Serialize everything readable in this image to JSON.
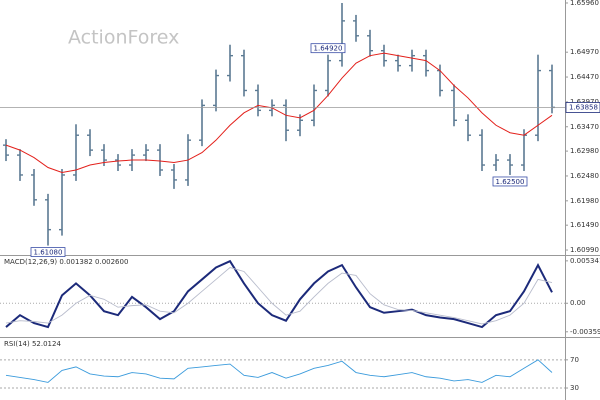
{
  "chart_data": [
    {
      "type": "ohlc",
      "watermark": "ActionForex",
      "color": "#5b7a93",
      "grid": false,
      "open": [
        1.631,
        1.629,
        1.625,
        1.62,
        1.614,
        1.625,
        1.633,
        1.63,
        1.628,
        1.627,
        1.629,
        1.63,
        1.626,
        1.624,
        1.632,
        1.639,
        1.645,
        1.649,
        1.642,
        1.638,
        1.639,
        1.634,
        1.636,
        1.642,
        1.648,
        1.656,
        1.653,
        1.65,
        1.648,
        1.647,
        1.649,
        1.646,
        1.642,
        1.636,
        1.633,
        1.627,
        1.628,
        1.627,
        1.633,
        1.646
      ],
      "high": [
        1.6322,
        1.6302,
        1.6262,
        1.6212,
        1.6262,
        1.6352,
        1.6342,
        1.6312,
        1.6292,
        1.6302,
        1.6312,
        1.6312,
        1.6272,
        1.6332,
        1.6402,
        1.6462,
        1.6512,
        1.6502,
        1.6432,
        1.6402,
        1.6402,
        1.6372,
        1.6432,
        1.6492,
        1.6596,
        1.6572,
        1.6542,
        1.6512,
        1.6492,
        1.6502,
        1.6502,
        1.6472,
        1.6432,
        1.6372,
        1.6342,
        1.6292,
        1.6292,
        1.6342,
        1.6492,
        1.6472
      ],
      "low": [
        1.6278,
        1.6238,
        1.6188,
        1.6108,
        1.6128,
        1.6238,
        1.6288,
        1.6268,
        1.6258,
        1.6258,
        1.6278,
        1.6248,
        1.6222,
        1.6228,
        1.6308,
        1.6378,
        1.6438,
        1.6408,
        1.6368,
        1.6368,
        1.6318,
        1.6328,
        1.6348,
        1.6408,
        1.6468,
        1.6518,
        1.6488,
        1.6468,
        1.6458,
        1.6458,
        1.6448,
        1.6408,
        1.6348,
        1.6318,
        1.6258,
        1.6258,
        1.625,
        1.6258,
        1.6318,
        1.6374
      ],
      "close": [
        1.629,
        1.625,
        1.62,
        1.614,
        1.625,
        1.633,
        1.63,
        1.628,
        1.627,
        1.629,
        1.63,
        1.626,
        1.624,
        1.632,
        1.639,
        1.645,
        1.649,
        1.642,
        1.638,
        1.639,
        1.634,
        1.636,
        1.642,
        1.648,
        1.656,
        1.653,
        1.65,
        1.648,
        1.647,
        1.649,
        1.646,
        1.642,
        1.636,
        1.633,
        1.627,
        1.628,
        1.627,
        1.633,
        1.646,
        1.6386
      ],
      "series": [
        {
          "color": "#e3201b",
          "values": [
            1.631,
            1.63,
            1.6285,
            1.6265,
            1.6255,
            1.626,
            1.627,
            1.6275,
            1.6278,
            1.628,
            1.628,
            1.6278,
            1.6275,
            1.628,
            1.6295,
            1.632,
            1.635,
            1.6375,
            1.639,
            1.6385,
            1.637,
            1.6365,
            1.638,
            1.641,
            1.6445,
            1.6475,
            1.649,
            1.6495,
            1.649,
            1.6485,
            1.648,
            1.646,
            1.643,
            1.6405,
            1.6375,
            1.635,
            1.6335,
            1.633,
            1.635,
            1.637
          ]
        }
      ],
      "ylim": [
        1.6089,
        1.6602
      ],
      "yticks": [
        {
          "value": 1.6596,
          "label": "1.65960"
        },
        {
          "value": 1.6497,
          "label": "1.64970"
        },
        {
          "value": 1.6447,
          "label": "1.64470"
        },
        {
          "value": 1.6397,
          "label": "1.63970"
        },
        {
          "value": 1.6347,
          "label": "1.63470"
        },
        {
          "value": 1.6298,
          "label": "1.62980"
        },
        {
          "value": 1.6248,
          "label": "1.62480"
        },
        {
          "value": 1.6198,
          "label": "1.61980"
        },
        {
          "value": 1.6149,
          "label": "1.61490"
        },
        {
          "value": 1.6099,
          "label": "1.60990"
        }
      ],
      "annotations": [
        {
          "value": 1.6108,
          "label": "1.61080"
        },
        {
          "value": 1.625,
          "label": "1.62500"
        },
        {
          "value": 1.6492,
          "label": "1.64920"
        }
      ],
      "last": {
        "value": 1.63858,
        "label": "1.63858"
      }
    },
    {
      "type": "line",
      "title": "MACD(12,26,9) 0.001382 0.002600",
      "series": [
        {
          "color": "#1c2a7a",
          "values": [
            -0.003,
            -0.0015,
            -0.0025,
            -0.003,
            0.001,
            0.0025,
            0.001,
            -0.001,
            -0.0015,
            0.0008,
            -0.0005,
            -0.002,
            -0.001,
            0.0015,
            0.003,
            0.0045,
            0.0053,
            0.0025,
            0.0,
            -0.0015,
            -0.0022,
            0.0005,
            0.0025,
            0.004,
            0.0048,
            0.002,
            -0.0005,
            -0.0012,
            -0.001,
            -0.0008,
            -0.0015,
            -0.0018,
            -0.002,
            -0.0025,
            -0.003,
            -0.0015,
            -0.001,
            0.0015,
            0.0048,
            0.001382
          ]
        },
        {
          "color": "#b8bccc",
          "values": [
            -0.0025,
            -0.0022,
            -0.0023,
            -0.0025,
            -0.0015,
            0.0,
            0.001,
            0.0005,
            -0.0005,
            -0.0003,
            -0.0002,
            -0.001,
            -0.0012,
            0.0,
            0.0015,
            0.003,
            0.0045,
            0.004,
            0.002,
            0.0,
            -0.0015,
            -0.001,
            0.0008,
            0.0025,
            0.0038,
            0.0035,
            0.0012,
            -0.0002,
            -0.0008,
            -0.0009,
            -0.0012,
            -0.0015,
            -0.0018,
            -0.0022,
            -0.0026,
            -0.0022,
            -0.0015,
            0.0,
            0.003,
            0.0026
          ]
        }
      ],
      "ylim": [
        -0.004,
        0.0057
      ],
      "yticks": [
        0.005341,
        {
          "value": 0,
          "label": "0.00"
        },
        -0.003596
      ]
    },
    {
      "type": "line",
      "title": "RSI(14) 52.0124",
      "series": [
        {
          "color": "#3b9bdc",
          "values": [
            48,
            45,
            42,
            38,
            55,
            60,
            50,
            47,
            46,
            52,
            50,
            44,
            43,
            58,
            60,
            62,
            64,
            48,
            45,
            52,
            44,
            50,
            58,
            62,
            68,
            52,
            48,
            46,
            49,
            52,
            46,
            44,
            40,
            42,
            38,
            48,
            46,
            58,
            70,
            52.0124
          ]
        }
      ],
      "ylim": [
        13,
        101
      ],
      "yticks": [
        70,
        30
      ]
    }
  ]
}
